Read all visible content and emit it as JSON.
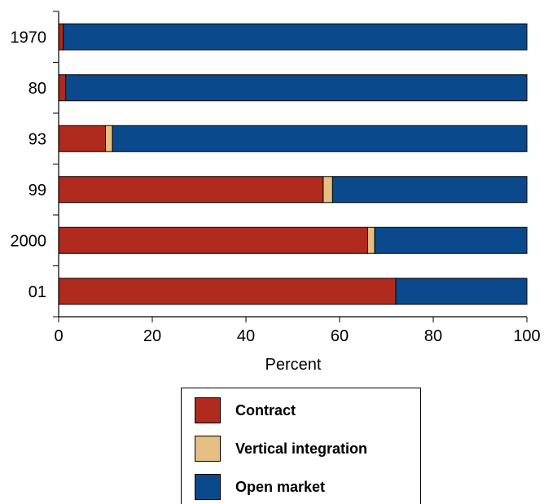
{
  "chart_data": {
    "type": "bar",
    "orientation": "horizontal",
    "stacked": true,
    "categories": [
      "1970",
      "80",
      "93",
      "99",
      "2000",
      "01"
    ],
    "series": [
      {
        "name": "Contract",
        "color": "#b02a1e",
        "values": [
          1,
          1.5,
          10,
          56.5,
          66,
          72
        ]
      },
      {
        "name": "Vertical integration",
        "color": "#e3bf84",
        "values": [
          0,
          0,
          1.5,
          2,
          1.5,
          0
        ]
      },
      {
        "name": "Open market",
        "color": "#0a4a8c",
        "values": [
          99,
          98.5,
          88.5,
          41.5,
          32.5,
          28
        ]
      }
    ],
    "xlabel": "Percent",
    "ylabel": "",
    "xlim": [
      0,
      100
    ],
    "xticks": [
      0,
      20,
      40,
      60,
      80,
      100
    ],
    "grid": false,
    "legend_position": "bottom"
  }
}
